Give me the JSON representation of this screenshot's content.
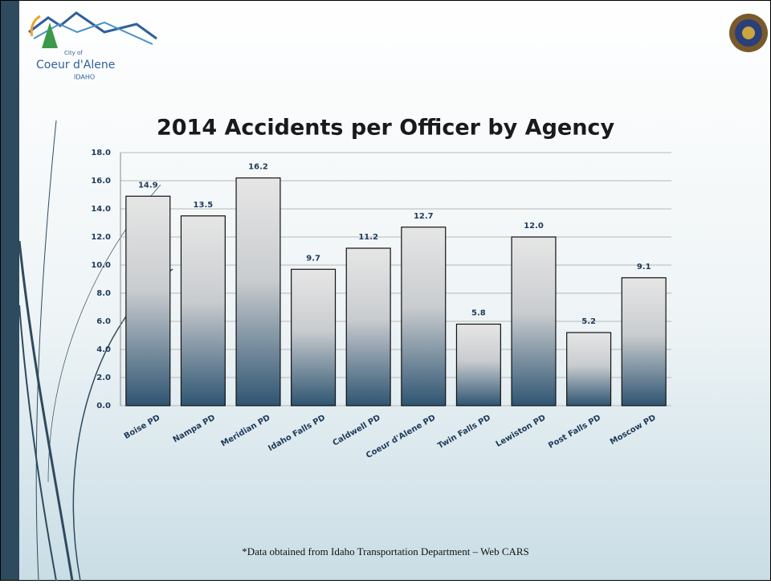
{
  "header": {
    "logo": {
      "city": "City of",
      "name": "Coeur d'Alene",
      "state": "IDAHO"
    }
  },
  "chart_data": {
    "type": "bar",
    "title": "2014 Accidents per Officer by Agency",
    "categories": [
      "Boise PD",
      "Nampa PD",
      "Meridian PD",
      "Idaho Falls PD",
      "Caldwell PD",
      "Coeur d'Alene PD",
      "Twin Falls PD",
      "Lewiston PD",
      "Post Falls PD",
      "Moscow PD"
    ],
    "values": [
      14.9,
      13.5,
      16.2,
      9.7,
      11.2,
      12.7,
      5.8,
      12.0,
      5.2,
      9.1
    ],
    "value_labels": [
      "14.9",
      "13.5",
      "16.2",
      "9.7",
      "11.2",
      "12.7",
      "5.8",
      "12.0",
      "5.2",
      "9.1"
    ],
    "ylim": [
      0,
      18
    ],
    "yticks": [
      {
        "value": 0,
        "label": "0.0"
      },
      {
        "value": 2,
        "label": "2.0"
      },
      {
        "value": 4,
        "label": "4.0"
      },
      {
        "value": 6,
        "label": "6.0"
      },
      {
        "value": 8,
        "label": "8.0"
      },
      {
        "value": 10,
        "label": "10.0"
      },
      {
        "value": 12,
        "label": "12.0"
      },
      {
        "value": 14,
        "label": "14.0"
      },
      {
        "value": 16,
        "label": "16.0"
      },
      {
        "value": 18,
        "label": "18.0"
      }
    ],
    "grid": true
  },
  "footnote": "*Data obtained from Idaho Transportation Department – Web CARS"
}
